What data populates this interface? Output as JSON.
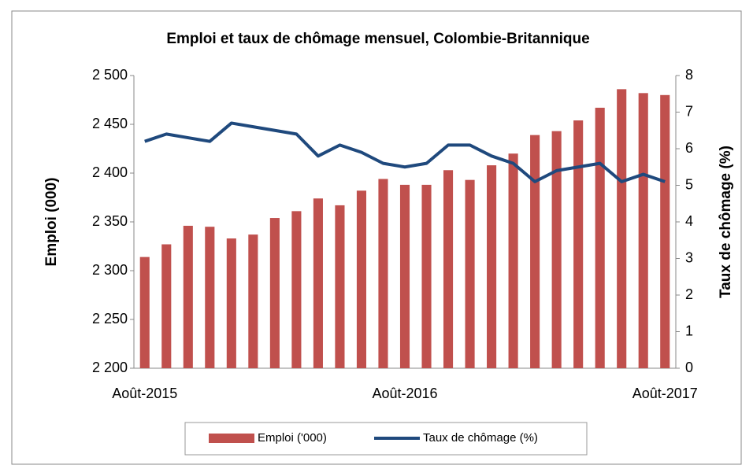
{
  "chart_data": {
    "type": "bar-line",
    "title": "Emploi et taux de chômage mensuel, Colombie-Britannique",
    "y_label": "Emploi (000)",
    "y2_label": "Taux de chômage (%)",
    "categories": [
      "Août-2015",
      null,
      null,
      null,
      null,
      null,
      null,
      null,
      null,
      null,
      null,
      null,
      "Août-2016",
      null,
      null,
      null,
      null,
      null,
      null,
      null,
      null,
      null,
      null,
      null,
      "Août-2017"
    ],
    "series": [
      {
        "name": "Emploi ('000)",
        "type": "bar",
        "color": "#c0504d",
        "values": [
          2314,
          2327,
          2346,
          2345,
          2333,
          2337,
          2354,
          2361,
          2374,
          2367,
          2382,
          2394,
          2388,
          2388,
          2403,
          2393,
          2408,
          2420,
          2439,
          2443,
          2454,
          2467,
          2486,
          2482,
          2480
        ]
      },
      {
        "name": "Taux de chômage (%)",
        "type": "line",
        "axis": "y2",
        "color": "#1f497d",
        "values": [
          6.2,
          6.4,
          6.3,
          6.2,
          6.7,
          6.6,
          6.5,
          6.4,
          5.8,
          6.1,
          5.9,
          5.6,
          5.5,
          5.6,
          6.1,
          6.1,
          5.8,
          5.6,
          5.1,
          5.4,
          5.5,
          5.6,
          5.1,
          5.3,
          5.1
        ]
      }
    ],
    "ylim": [
      2200,
      2500
    ],
    "yticks": [
      {
        "value": 2200,
        "label": "2 200"
      },
      {
        "value": 2250,
        "label": "2 250"
      },
      {
        "value": 2300,
        "label": "2 300"
      },
      {
        "value": 2350,
        "label": "2 350"
      },
      {
        "value": 2400,
        "label": "2 400"
      },
      {
        "value": 2450,
        "label": "2 450"
      },
      {
        "value": 2500,
        "label": "2 500"
      }
    ],
    "y2lim": [
      0,
      8
    ],
    "y2ticks": [
      0,
      1,
      2,
      3,
      4,
      5,
      6,
      7,
      8
    ],
    "legend": "bottom"
  }
}
